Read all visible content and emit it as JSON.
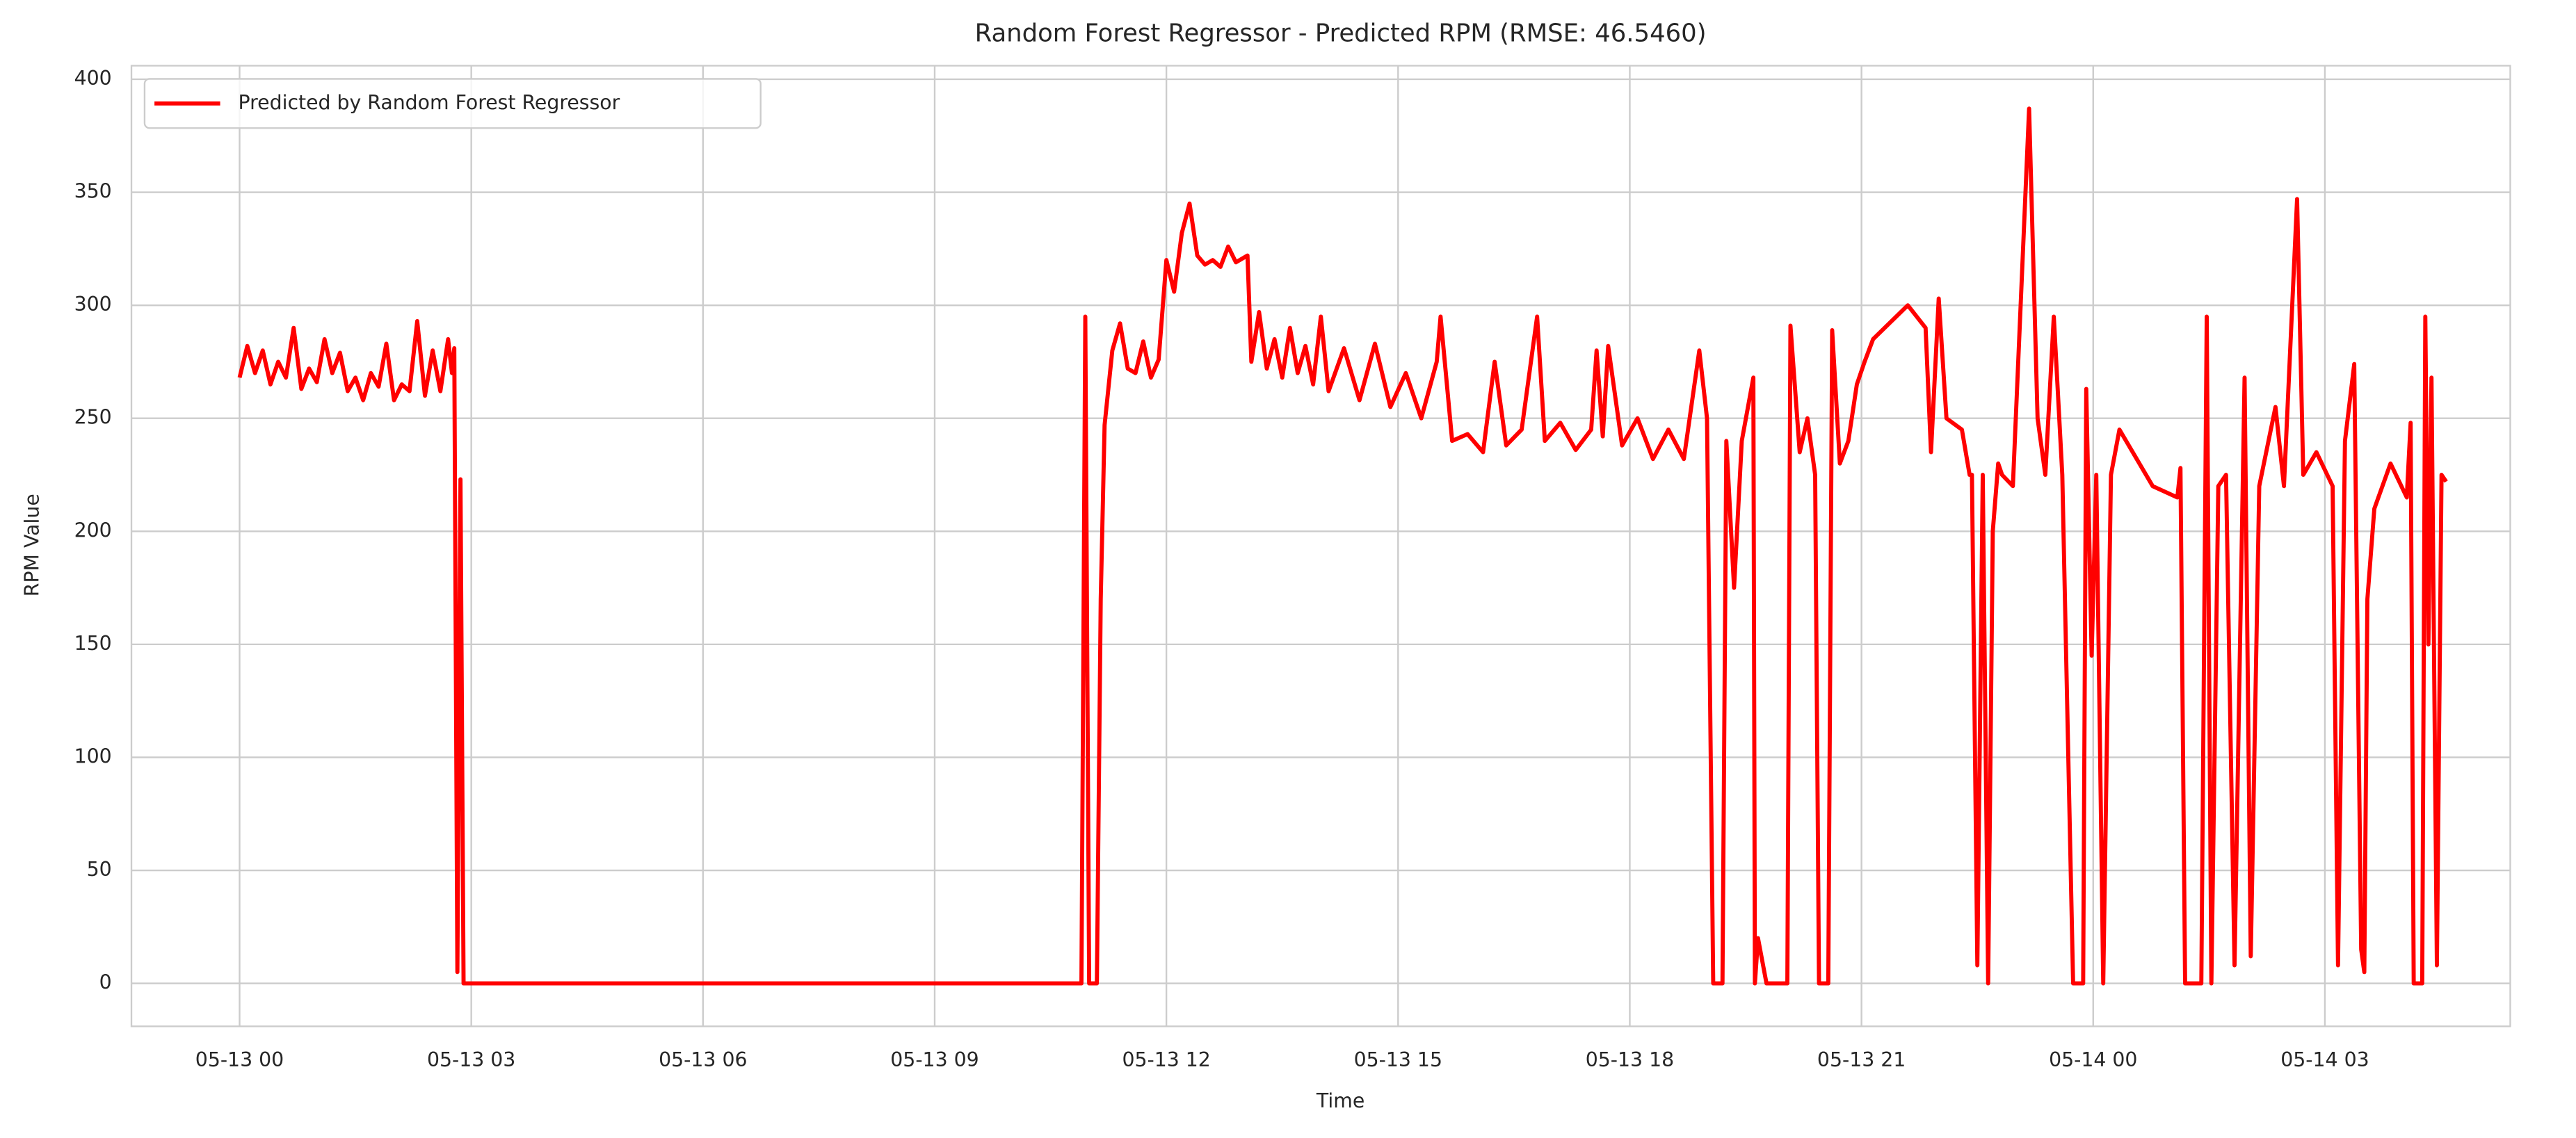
{
  "chart_data": {
    "type": "line",
    "title": "Random Forest Regressor - Predicted RPM (RMSE: 46.5460)",
    "xlabel": "Time",
    "ylabel": "RPM Value",
    "xlim": [
      -1.4,
      29.4
    ],
    "ylim": [
      -19,
      406
    ],
    "xticks": [
      {
        "value": 0,
        "label": "05-13 00"
      },
      {
        "value": 3,
        "label": "05-13 03"
      },
      {
        "value": 6,
        "label": "05-13 06"
      },
      {
        "value": 9,
        "label": "05-13 09"
      },
      {
        "value": 12,
        "label": "05-13 12"
      },
      {
        "value": 15,
        "label": "05-13 15"
      },
      {
        "value": 18,
        "label": "05-13 18"
      },
      {
        "value": 21,
        "label": "05-13 21"
      },
      {
        "value": 24,
        "label": "05-14 00"
      },
      {
        "value": 27,
        "label": "05-14 03"
      }
    ],
    "yticks": [
      0,
      50,
      100,
      150,
      200,
      250,
      300,
      350,
      400
    ],
    "grid": true,
    "legend": "upper-left",
    "x": [
      0,
      0.1,
      0.2,
      0.3,
      0.4,
      0.5,
      0.6,
      0.7,
      0.8,
      0.9,
      1.0,
      1.1,
      1.2,
      1.3,
      1.4,
      1.5,
      1.6,
      1.7,
      1.8,
      1.9,
      2.0,
      2.1,
      2.2,
      2.3,
      2.4,
      2.5,
      2.6,
      2.7,
      2.75,
      2.78,
      2.82,
      2.86,
      2.9,
      10.9,
      10.95,
      11.0,
      11.1,
      11.15,
      11.2,
      11.3,
      11.4,
      11.5,
      11.6,
      11.7,
      11.8,
      11.9,
      12.0,
      12.1,
      12.2,
      12.3,
      12.4,
      12.5,
      12.6,
      12.7,
      12.8,
      12.9,
      13.05,
      13.1,
      13.2,
      13.3,
      13.4,
      13.5,
      13.6,
      13.7,
      13.8,
      13.9,
      14.0,
      14.1,
      14.3,
      14.5,
      14.7,
      14.9,
      15.1,
      15.3,
      15.5,
      15.55,
      15.7,
      15.9,
      16.1,
      16.25,
      16.4,
      16.6,
      16.8,
      16.9,
      17.1,
      17.3,
      17.5,
      17.57,
      17.65,
      17.72,
      17.9,
      18.1,
      18.3,
      18.5,
      18.7,
      18.9,
      19.0,
      19.08,
      19.2,
      19.25,
      19.35,
      19.45,
      19.6,
      19.62,
      19.66,
      19.77,
      20.04,
      20.08,
      20.2,
      20.3,
      20.4,
      20.45,
      20.57,
      20.62,
      20.72,
      20.83,
      20.94,
      21.04,
      21.15,
      21.6,
      21.83,
      21.9,
      22.0,
      22.1,
      22.3,
      22.4,
      22.43,
      22.5,
      22.57,
      22.64,
      22.7,
      22.77,
      22.82,
      22.96,
      23.17,
      23.28,
      23.38,
      23.49,
      23.6,
      23.74,
      23.87,
      23.91,
      23.98,
      24.04,
      24.13,
      24.23,
      24.34,
      24.77,
      25.09,
      25.13,
      25.19,
      25.4,
      25.47,
      25.53,
      25.62,
      25.72,
      25.83,
      25.96,
      26.04,
      26.15,
      26.36,
      26.47,
      26.64,
      26.72,
      26.89,
      27.1,
      27.17,
      27.26,
      27.38,
      27.47,
      27.51,
      27.55,
      27.64,
      27.85,
      28.06,
      28.11,
      28.15,
      28.26,
      28.3,
      28.34,
      28.38,
      28.45,
      28.51,
      28.57
    ],
    "series": [
      {
        "name": "Predicted by Random Forest Regressor",
        "color": "#ff0000",
        "values": [
          268,
          282,
          270,
          280,
          265,
          275,
          268,
          290,
          263,
          272,
          266,
          285,
          270,
          279,
          262,
          268,
          258,
          270,
          264,
          283,
          258,
          265,
          262,
          293,
          260,
          280,
          262,
          285,
          270,
          281,
          5,
          223,
          0,
          0,
          295,
          0,
          0,
          170,
          247,
          280,
          292,
          272,
          270,
          284,
          268,
          276,
          320,
          306,
          332,
          345,
          322,
          318,
          320,
          317,
          326,
          319,
          322,
          275,
          297,
          272,
          285,
          268,
          290,
          270,
          282,
          265,
          295,
          262,
          281,
          258,
          283,
          255,
          270,
          250,
          275,
          295,
          240,
          243,
          235,
          275,
          238,
          245,
          295,
          240,
          248,
          236,
          245,
          280,
          242,
          282,
          238,
          250,
          232,
          245,
          232,
          280,
          250,
          0,
          0,
          240,
          175,
          240,
          268,
          0,
          20,
          0,
          0,
          291,
          235,
          250,
          225,
          0,
          0,
          289,
          230,
          240,
          265,
          275,
          285,
          300,
          290,
          235,
          303,
          250,
          245,
          225,
          225,
          8,
          225,
          0,
          200,
          230,
          225,
          220,
          387,
          250,
          225,
          295,
          225,
          0,
          0,
          263,
          145,
          225,
          0,
          225,
          245,
          220,
          215,
          228,
          0,
          0,
          295,
          0,
          220,
          225,
          8,
          268,
          12,
          220,
          255,
          220,
          347,
          225,
          235,
          220,
          8,
          240,
          274,
          15,
          5,
          170,
          210,
          230,
          215,
          248,
          0,
          0,
          295,
          150,
          268,
          8,
          225,
          222
        ]
      }
    ]
  }
}
